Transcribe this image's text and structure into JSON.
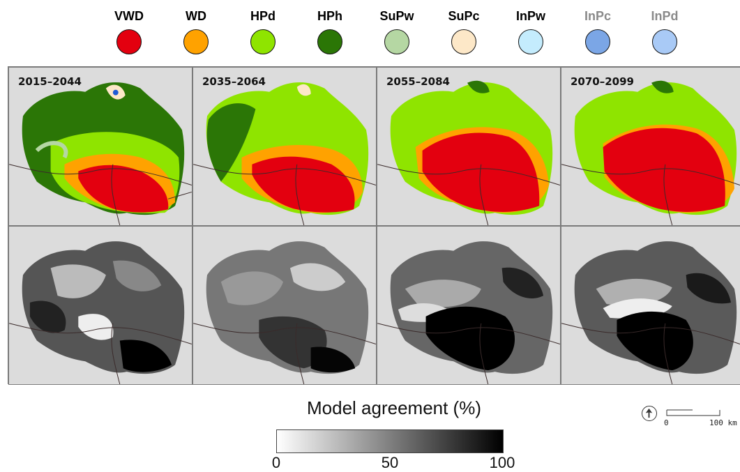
{
  "legend": [
    {
      "code": "VWD",
      "color": "#e3000f",
      "label_color": "#111111"
    },
    {
      "code": "WD",
      "color": "#ffa200",
      "label_color": "#111111"
    },
    {
      "code": "HPd",
      "color": "#8fe400",
      "label_color": "#111111"
    },
    {
      "code": "HPh",
      "color": "#2b7606",
      "label_color": "#111111"
    },
    {
      "code": "SuPw",
      "color": "#b5d7a3",
      "label_color": "#111111"
    },
    {
      "code": "SuPc",
      "color": "#fde8c8",
      "label_color": "#111111"
    },
    {
      "code": "InPw",
      "color": "#c4ecfd",
      "label_color": "#111111"
    },
    {
      "code": "InPc",
      "color": "#7ba6e6",
      "label_color": "#8a8a8a"
    },
    {
      "code": "InPd",
      "color": "#a9caf6",
      "label_color": "#8a8a8a"
    }
  ],
  "periods": [
    "2015–2044",
    "2035–2064",
    "2055–2084",
    "2070–2099"
  ],
  "colorbar": {
    "title": "Model agreement (%)",
    "ticks": [
      "0",
      "50",
      "100"
    ],
    "min_color": "#ffffff",
    "max_color": "#000000"
  },
  "scale_bar": {
    "start_label": "0",
    "end_label": "100 km"
  },
  "north_arrow": {
    "icon": "north-arrow-icon"
  }
}
